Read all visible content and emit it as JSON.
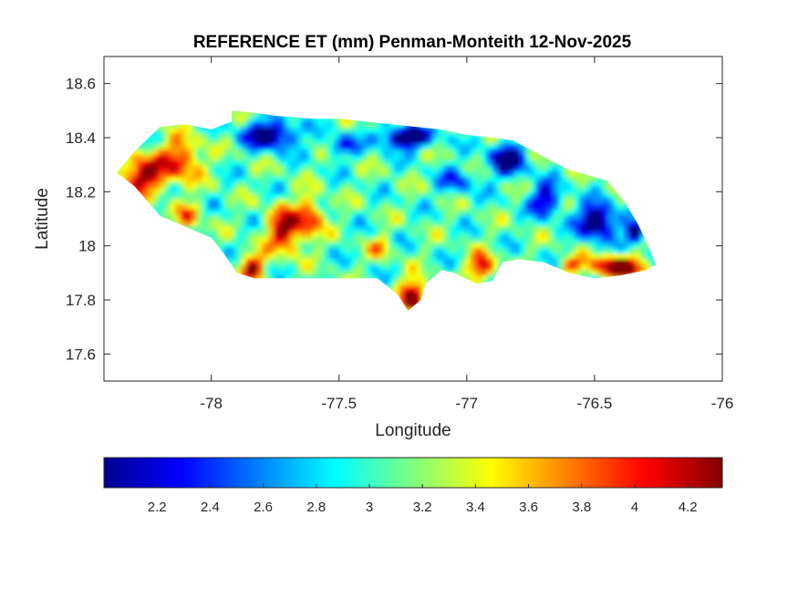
{
  "chart_data": {
    "type": "heatmap",
    "title": "REFERENCE ET (mm) Penman-Monteith 12-Nov-2025",
    "xlabel": "Longitude",
    "ylabel": "Latitude",
    "xlim": [
      -78.42,
      -76.0
    ],
    "ylim": [
      17.5,
      18.7
    ],
    "xticks": [
      -78,
      -77.5,
      -77,
      -76.5,
      -76
    ],
    "xtick_labels": [
      "-78",
      "-77.5",
      "-77",
      "-76.5",
      "-76"
    ],
    "yticks": [
      17.6,
      17.8,
      18,
      18.2,
      18.4,
      18.6
    ],
    "ytick_labels": [
      "17.6",
      "17.8",
      "18",
      "18.2",
      "18.4",
      "18.6"
    ],
    "colormap": "jet",
    "clim": [
      2.0,
      4.33
    ],
    "colorbar": {
      "location": "south",
      "ticks": [
        2.2,
        2.4,
        2.6,
        2.8,
        3.0,
        3.2,
        3.4,
        3.6,
        3.8,
        4.0,
        4.2
      ],
      "tick_labels": [
        "2.2",
        "2.4",
        "2.6",
        "2.8",
        "3",
        "3.2",
        "3.4",
        "3.6",
        "3.8",
        "4",
        "4.2"
      ]
    },
    "region_outline": {
      "lon": [
        -78.37,
        -78.3,
        -78.2,
        -78.1,
        -78.0,
        -77.92,
        -77.92,
        -77.82,
        -77.74,
        -77.6,
        -77.5,
        -77.4,
        -77.3,
        -77.2,
        -77.1,
        -77.0,
        -76.9,
        -76.82,
        -76.7,
        -76.6,
        -76.52,
        -76.45,
        -76.38,
        -76.33,
        -76.3,
        -76.26,
        -76.3,
        -76.4,
        -76.5,
        -76.6,
        -76.7,
        -76.8,
        -76.86,
        -76.9,
        -76.96,
        -77.05,
        -77.1,
        -77.16,
        -77.18,
        -77.23,
        -77.27,
        -77.35,
        -77.45,
        -77.55,
        -77.7,
        -77.83,
        -77.9,
        -77.95,
        -78.0,
        -78.1,
        -78.2,
        -78.3,
        -78.37
      ],
      "lat": [
        18.27,
        18.35,
        18.44,
        18.45,
        18.43,
        18.46,
        18.5,
        18.49,
        18.48,
        18.47,
        18.47,
        18.46,
        18.45,
        18.44,
        18.43,
        18.41,
        18.4,
        18.39,
        18.33,
        18.28,
        18.26,
        18.24,
        18.16,
        18.08,
        18.02,
        17.93,
        17.91,
        17.89,
        17.88,
        17.9,
        17.94,
        17.95,
        17.94,
        17.87,
        17.86,
        17.9,
        17.91,
        17.86,
        17.8,
        17.76,
        17.82,
        17.88,
        17.88,
        17.88,
        17.88,
        17.88,
        17.9,
        17.97,
        18.03,
        18.07,
        18.11,
        18.22,
        18.27
      ]
    }
  }
}
